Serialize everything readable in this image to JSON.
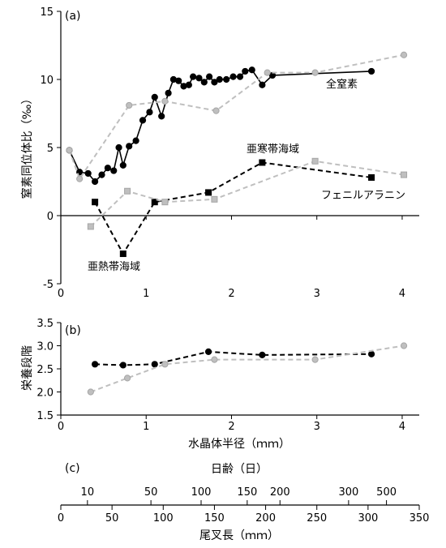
{
  "chart_data": [
    {
      "type": "line",
      "panel_label": "(a)",
      "ylabel": "窒素同位体比（‰）",
      "ylim": [
        -5,
        15
      ],
      "xlim": [
        0,
        4.2
      ],
      "yticks": [
        -5,
        0,
        5,
        10,
        15
      ],
      "xticks": [
        0,
        1,
        2,
        3,
        4
      ],
      "series": [
        {
          "name": "全窒素",
          "color": "#000000",
          "dash": false,
          "marker": "circle",
          "points": [
            [
              0.1,
              4.8
            ],
            [
              0.22,
              3.2
            ],
            [
              0.32,
              3.1
            ],
            [
              0.4,
              2.5
            ],
            [
              0.48,
              3.0
            ],
            [
              0.55,
              3.5
            ],
            [
              0.62,
              3.3
            ],
            [
              0.68,
              5.0
            ],
            [
              0.73,
              3.7
            ],
            [
              0.8,
              5.1
            ],
            [
              0.88,
              5.5
            ],
            [
              0.96,
              7.0
            ],
            [
              1.04,
              7.6
            ],
            [
              1.1,
              8.7
            ],
            [
              1.18,
              7.3
            ],
            [
              1.26,
              9.0
            ],
            [
              1.32,
              10.0
            ],
            [
              1.38,
              9.9
            ],
            [
              1.44,
              9.5
            ],
            [
              1.5,
              9.6
            ],
            [
              1.55,
              10.2
            ],
            [
              1.62,
              10.1
            ],
            [
              1.68,
              9.8
            ],
            [
              1.74,
              10.2
            ],
            [
              1.8,
              9.8
            ],
            [
              1.86,
              10.0
            ],
            [
              1.94,
              10.0
            ],
            [
              2.02,
              10.2
            ],
            [
              2.1,
              10.2
            ],
            [
              2.16,
              10.6
            ],
            [
              2.24,
              10.7
            ],
            [
              2.36,
              9.6
            ],
            [
              2.48,
              10.3
            ],
            [
              3.64,
              10.6
            ]
          ]
        },
        {
          "name": "フェニルアラニン",
          "color": "#bfbfbf",
          "dash": true,
          "marker": "circle",
          "points": [
            [
              0.1,
              4.8
            ],
            [
              0.22,
              2.7
            ],
            [
              0.8,
              8.1
            ],
            [
              1.22,
              8.4
            ],
            [
              1.82,
              7.7
            ],
            [
              2.42,
              10.5
            ],
            [
              2.98,
              10.5
            ],
            [
              4.02,
              11.8
            ]
          ]
        },
        {
          "name": "亜寒帯海域",
          "color": "#000000",
          "dash": true,
          "marker": "square",
          "points": [
            [
              0.4,
              1.0
            ],
            [
              0.73,
              -2.8
            ],
            [
              1.1,
              1.0
            ],
            [
              1.73,
              1.7
            ],
            [
              2.36,
              3.9
            ],
            [
              3.64,
              2.8
            ]
          ]
        },
        {
          "name": "亜熱帯海域",
          "color": "#bfbfbf",
          "dash": true,
          "marker": "square",
          "points": [
            [
              0.35,
              -0.8
            ],
            [
              0.78,
              1.8
            ],
            [
              1.22,
              1.0
            ],
            [
              1.8,
              1.2
            ],
            [
              2.98,
              4.0
            ],
            [
              4.02,
              3.0
            ]
          ]
        }
      ]
    },
    {
      "type": "line",
      "panel_label": "(b)",
      "ylabel": "栄養段階",
      "xlabel": "水晶体半径（ｍｍ）",
      "ylim": [
        1.5,
        3.5
      ],
      "xlim": [
        0,
        4.2
      ],
      "yticks": [
        "1.5",
        "2.0",
        "2.5",
        "3.0",
        "3.5"
      ],
      "xticks": [
        0,
        1,
        2,
        3,
        4
      ],
      "series": [
        {
          "color": "#000000",
          "dash": true,
          "marker": "circle",
          "points": [
            [
              0.4,
              2.6
            ],
            [
              0.73,
              2.58
            ],
            [
              1.1,
              2.6
            ],
            [
              1.73,
              2.87
            ],
            [
              2.36,
              2.8
            ],
            [
              3.64,
              2.82
            ]
          ]
        },
        {
          "color": "#bfbfbf",
          "dash": true,
          "marker": "circle",
          "points": [
            [
              0.35,
              2.0
            ],
            [
              0.78,
              2.3
            ],
            [
              1.22,
              2.6
            ],
            [
              1.8,
              2.7
            ],
            [
              2.98,
              2.7
            ],
            [
              4.02,
              3.0
            ]
          ]
        }
      ]
    },
    {
      "type": "axis-scale",
      "panel_label": "(c)",
      "top_label": "日齢（日）",
      "top_ticks": [
        {
          "label": "10",
          "at": 26
        },
        {
          "label": "50",
          "at": 88
        },
        {
          "label": "100",
          "at": 137
        },
        {
          "label": "150",
          "at": 182
        },
        {
          "label": "200",
          "at": 214
        },
        {
          "label": "300",
          "at": 281
        },
        {
          "label": "500",
          "at": 318
        }
      ],
      "bottom_label": "尾叉長（ｍｍ）",
      "bottom_ticks": [
        0,
        50,
        100,
        150,
        200,
        250,
        300,
        350
      ],
      "xlim": [
        0,
        350
      ]
    }
  ],
  "annotations": {
    "total_n": "全窒素",
    "phenylalanine": "フェニルアラニン",
    "subarctic": "亜寒帯海域",
    "subtropical": "亜熱帯海域"
  }
}
